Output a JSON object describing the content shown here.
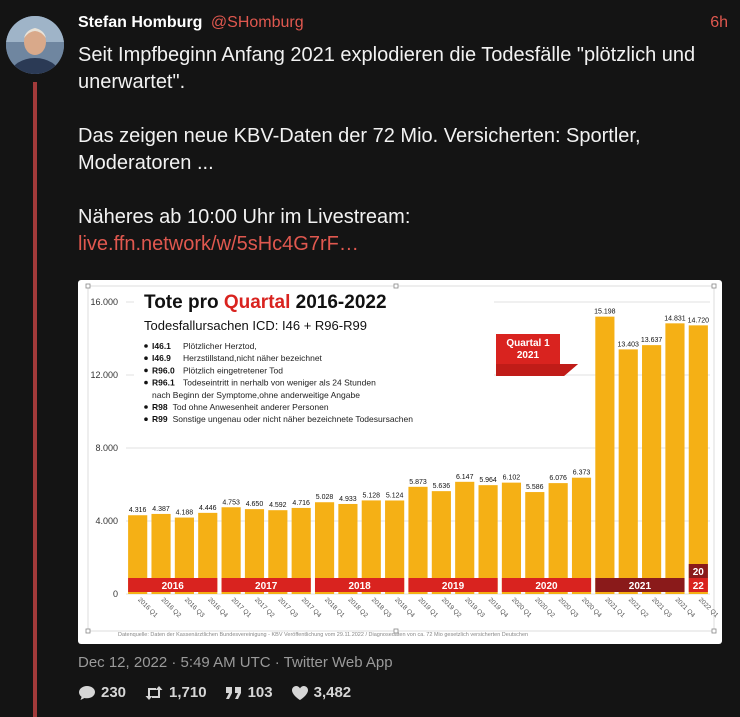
{
  "tweet": {
    "author_name": "Stefan Homburg",
    "author_handle": "@SHomburg",
    "time_ago": "6h",
    "text_line1": "Seit Impfbeginn Anfang 2021 explodieren die Todesfälle \"plötzlich und unerwartet\".",
    "text_line2": "Das zeigen neue KBV-Daten der 72 Mio. Versicherten: Sportler, Moderatoren ...",
    "text_line3": "Näheres ab 10:00 Uhr im Livestream:",
    "link": "live.ffn.network/w/5sHc4G7rF…",
    "meta": "Dec 12, 2022 · 5:49 AM UTC · Twitter Web App",
    "replies": "230",
    "retweets": "1,710",
    "quotes": "103",
    "likes": "3,482"
  },
  "icons": {
    "reply": "speech-bubble-icon",
    "retweet": "retweet-icon",
    "quote": "quote-icon",
    "like": "heart-icon"
  },
  "colors": {
    "accent": "#e0584f",
    "bar": "#f5b015",
    "band": "#d9231f",
    "band_dark": "#8a1a1a"
  },
  "chart_data": {
    "type": "bar",
    "title_part1": "Tote pro ",
    "title_highlight": "Quartal",
    "title_part2": " 2016-2022",
    "subtitle": "Todesfallursachen ICD: I46 + R96-R99",
    "legend": [
      {
        "code": "I46.1",
        "text": "Plötzlicher Herztod,"
      },
      {
        "code": "I46.9",
        "text": "Herzstillstand,nicht näher bezeichnet"
      },
      {
        "code": "R96.0",
        "text": "Plötzlich eingetretener Tod"
      },
      {
        "code": "R96.1",
        "text": "Todeseintritt in nerhalb von weniger als 24 Stunden"
      },
      {
        "code": "",
        "text": "nach Beginn der Symptome,ohne anderweitige Angabe"
      },
      {
        "code": "R98",
        "text": "Tod ohne Anwesenheit anderer Personen"
      },
      {
        "code": "R99",
        "text": "Sonstige ungenau oder nicht näher bezeichnete Todesursachen"
      }
    ],
    "callout_line1": "Quartal 1",
    "callout_line2": "2021",
    "yticks": [
      "0",
      "4.000",
      "8.000",
      "12.000",
      "16.000"
    ],
    "ylim": [
      0,
      16000
    ],
    "categories": [
      "2016 Q1",
      "2016 Q2",
      "2016 Q3",
      "2016 Q4",
      "2017 Q1",
      "2017 Q2",
      "2017 Q3",
      "2017 Q4",
      "2018 Q1",
      "2018 Q2",
      "2018 Q3",
      "2018 Q4",
      "2019 Q1",
      "2019 Q2",
      "2019 Q3",
      "2019 Q4",
      "2020 Q1",
      "2020 Q2",
      "2020 Q3",
      "2020 Q4",
      "2021 Q1",
      "2021 Q2",
      "2021 Q3",
      "2021 Q4",
      "2022 Q1"
    ],
    "values": [
      4316,
      4387,
      4188,
      4446,
      4753,
      4650,
      4592,
      4716,
      5028,
      4933,
      5128,
      5124,
      5873,
      5636,
      6147,
      5964,
      6102,
      5586,
      6076,
      6373,
      15198,
      13403,
      13637,
      14831,
      14720
    ],
    "value_labels": [
      "4.316",
      "4.387",
      "4.188",
      "4.446",
      "4.753",
      "4.650",
      "4.592",
      "4.716",
      "5.028",
      "4.933",
      "5.128",
      "5.124",
      "5.873",
      "5.636",
      "6.147",
      "5.964",
      "6.102",
      "5.586",
      "6.076",
      "6.373",
      "15.198",
      "13.403",
      "13.637",
      "14.831",
      "14.720"
    ],
    "year_labels": [
      "2016",
      "2017",
      "2018",
      "2019",
      "2020",
      "2021",
      "20 22"
    ],
    "footnote": "Datenquelle: Daten der Kassenärztlichen Bundesvereinigung - KBV Veröffentlichung vom 29.11.2022 / Diagnosedaten von ca. 72 Mio gesetzlich versicherten Deutschen"
  }
}
